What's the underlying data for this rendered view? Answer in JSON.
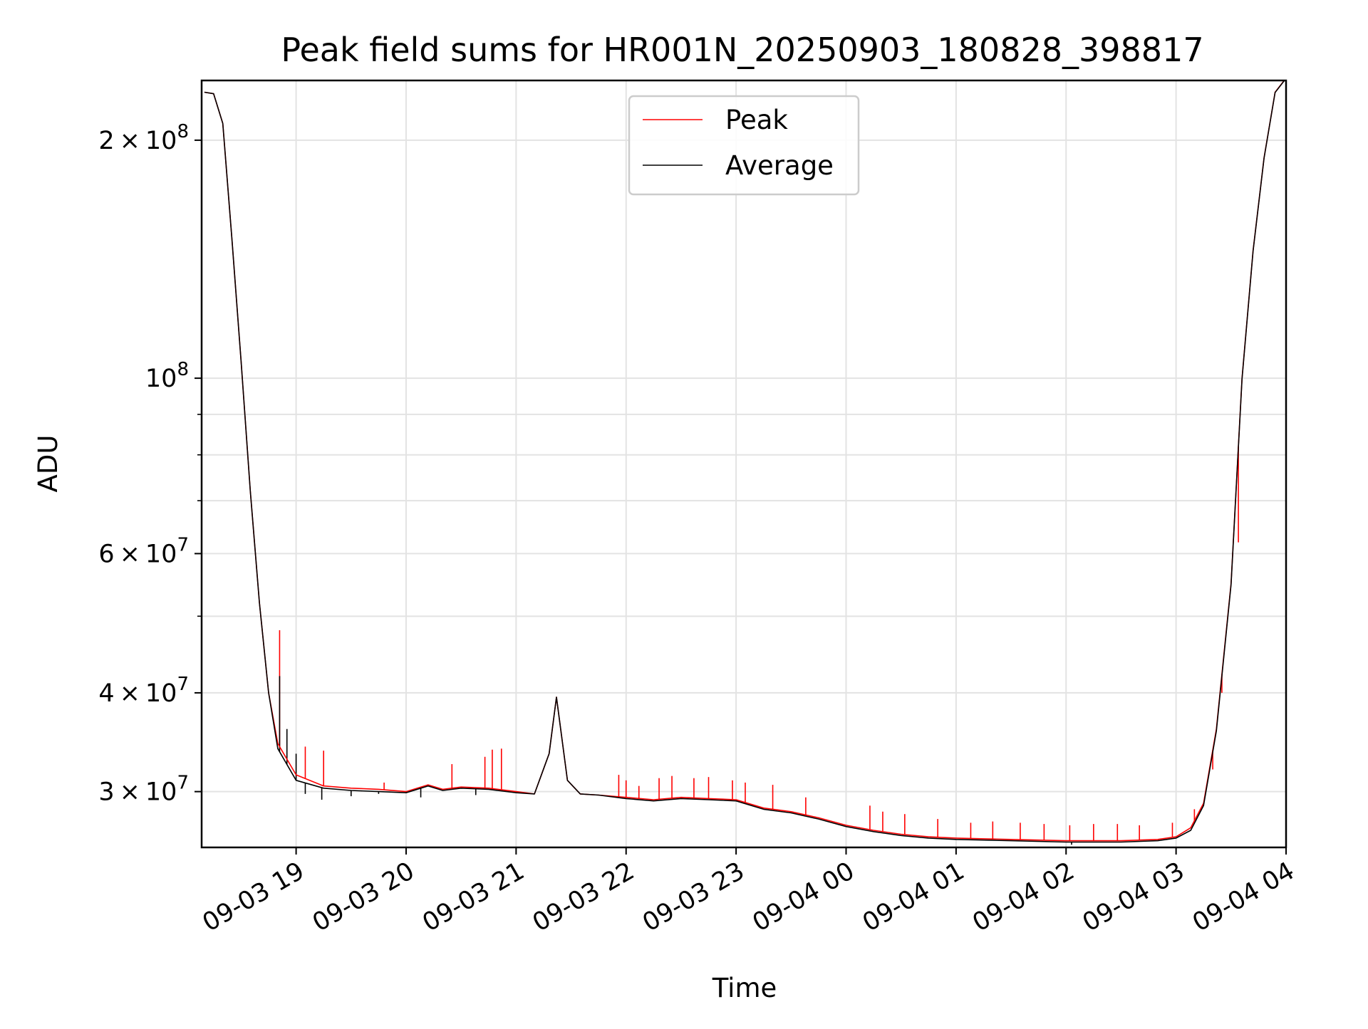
{
  "chart_data": {
    "type": "line",
    "title": "Peak field sums for HR001N_20250903_180828_398817",
    "xlabel": "Time",
    "ylabel": "ADU",
    "yscale": "log",
    "xlim": [
      "2025-09-03T18:08:28",
      "2025-09-04T04:00:00"
    ],
    "ylim": [
      25500000,
      238000000
    ],
    "grid": true,
    "legend": {
      "placement": "upper center",
      "entries": [
        "Peak",
        "Average"
      ]
    },
    "x_ticks": [
      "09-03 19",
      "09-03 20",
      "09-03 21",
      "09-03 22",
      "09-03 23",
      "09-04 00",
      "09-04 01",
      "09-04 02",
      "09-04 03",
      "09-04 04"
    ],
    "y_ticks": [
      {
        "value": 30000000,
        "mantissa": "3",
        "exponent": "7"
      },
      {
        "value": 40000000,
        "mantissa": "4",
        "exponent": "7"
      },
      {
        "value": 60000000,
        "mantissa": "6",
        "exponent": "7"
      },
      {
        "value": 100000000,
        "mantissa": "",
        "exponent": "8"
      },
      {
        "value": 200000000,
        "mantissa": "2",
        "exponent": "8"
      }
    ],
    "y_minor_ticks": [
      50000000,
      70000000,
      80000000,
      90000000
    ],
    "series": [
      {
        "name": "Peak",
        "color": "#ff0000",
        "x": [
          "2025-09-03T18:10:00",
          "2025-09-03T18:15:00",
          "2025-09-03T18:20:00",
          "2025-09-03T18:25:00",
          "2025-09-03T18:30:00",
          "2025-09-03T18:35:00",
          "2025-09-03T18:40:00",
          "2025-09-03T18:45:00",
          "2025-09-03T18:50:00",
          "2025-09-03T19:00:00",
          "2025-09-03T19:15:00",
          "2025-09-03T19:30:00",
          "2025-09-03T19:45:00",
          "2025-09-03T20:00:00",
          "2025-09-03T20:12:00",
          "2025-09-03T20:20:00",
          "2025-09-03T20:30:00",
          "2025-09-03T20:45:00",
          "2025-09-03T21:00:00",
          "2025-09-03T21:10:00",
          "2025-09-03T21:18:00",
          "2025-09-03T21:22:00",
          "2025-09-03T21:28:00",
          "2025-09-03T21:35:00",
          "2025-09-03T21:45:00",
          "2025-09-03T22:00:00",
          "2025-09-03T22:15:00",
          "2025-09-03T22:30:00",
          "2025-09-03T22:45:00",
          "2025-09-03T23:00:00",
          "2025-09-03T23:15:00",
          "2025-09-03T23:30:00",
          "2025-09-03T23:45:00",
          "2025-09-04T00:00:00",
          "2025-09-04T00:15:00",
          "2025-09-04T00:30:00",
          "2025-09-04T00:45:00",
          "2025-09-04T01:00:00",
          "2025-09-04T01:30:00",
          "2025-09-04T02:00:00",
          "2025-09-04T02:30:00",
          "2025-09-04T02:50:00",
          "2025-09-04T03:00:00",
          "2025-09-04T03:08:00",
          "2025-09-04T03:15:00",
          "2025-09-04T03:22:00",
          "2025-09-04T03:30:00",
          "2025-09-04T03:36:00",
          "2025-09-04T03:42:00",
          "2025-09-04T03:48:00",
          "2025-09-04T03:54:00",
          "2025-09-04T03:59:00"
        ],
        "y": [
          230000000,
          229000000,
          210000000,
          150000000,
          105000000,
          72000000,
          52000000,
          40000000,
          34500000,
          31500000,
          30500000,
          30300000,
          30200000,
          30000000,
          30600000,
          30200000,
          30400000,
          30300000,
          30000000,
          29800000,
          33500000,
          39500000,
          31000000,
          29800000,
          29700000,
          29500000,
          29300000,
          29500000,
          29400000,
          29300000,
          28600000,
          28300000,
          27800000,
          27200000,
          26800000,
          26500000,
          26300000,
          26200000,
          26100000,
          26000000,
          26000000,
          26100000,
          26300000,
          27000000,
          29000000,
          36000000,
          55000000,
          100000000,
          145000000,
          190000000,
          230000000,
          238000000
        ]
      },
      {
        "name": "Average",
        "color": "#000000",
        "x": [
          "2025-09-03T18:10:00",
          "2025-09-03T18:15:00",
          "2025-09-03T18:20:00",
          "2025-09-03T18:25:00",
          "2025-09-03T18:30:00",
          "2025-09-03T18:35:00",
          "2025-09-03T18:40:00",
          "2025-09-03T18:45:00",
          "2025-09-03T18:50:00",
          "2025-09-03T19:00:00",
          "2025-09-03T19:15:00",
          "2025-09-03T19:30:00",
          "2025-09-03T19:45:00",
          "2025-09-03T20:00:00",
          "2025-09-03T20:12:00",
          "2025-09-03T20:20:00",
          "2025-09-03T20:30:00",
          "2025-09-03T20:45:00",
          "2025-09-03T21:00:00",
          "2025-09-03T21:10:00",
          "2025-09-03T21:18:00",
          "2025-09-03T21:22:00",
          "2025-09-03T21:28:00",
          "2025-09-03T21:35:00",
          "2025-09-03T21:45:00",
          "2025-09-03T22:00:00",
          "2025-09-03T22:15:00",
          "2025-09-03T22:30:00",
          "2025-09-03T22:45:00",
          "2025-09-03T23:00:00",
          "2025-09-03T23:15:00",
          "2025-09-03T23:30:00",
          "2025-09-03T23:45:00",
          "2025-09-04T00:00:00",
          "2025-09-04T00:15:00",
          "2025-09-04T00:30:00",
          "2025-09-04T00:45:00",
          "2025-09-04T01:00:00",
          "2025-09-04T01:30:00",
          "2025-09-04T02:00:00",
          "2025-09-04T02:30:00",
          "2025-09-04T02:50:00",
          "2025-09-04T03:00:00",
          "2025-09-04T03:08:00",
          "2025-09-04T03:15:00",
          "2025-09-04T03:22:00",
          "2025-09-04T03:30:00",
          "2025-09-04T03:36:00",
          "2025-09-04T03:42:00",
          "2025-09-04T03:48:00",
          "2025-09-04T03:54:00",
          "2025-09-04T03:59:00"
        ],
        "y": [
          230000000,
          229000000,
          210000000,
          150000000,
          105000000,
          72000000,
          52000000,
          40000000,
          34000000,
          31000000,
          30300000,
          30100000,
          30000000,
          29900000,
          30500000,
          30100000,
          30300000,
          30200000,
          29900000,
          29800000,
          33500000,
          39500000,
          31000000,
          29800000,
          29700000,
          29400000,
          29200000,
          29400000,
          29300000,
          29200000,
          28500000,
          28200000,
          27700000,
          27100000,
          26700000,
          26400000,
          26200000,
          26100000,
          26000000,
          25900000,
          25900000,
          26000000,
          26200000,
          26800000,
          28800000,
          35800000,
          54800000,
          99800000,
          144800000,
          189800000,
          229800000,
          237800000
        ]
      }
    ],
    "spikes": {
      "Peak": [
        [
          "2025-09-03T18:51:00",
          48000000
        ],
        [
          "2025-09-03T19:05:00",
          34200000
        ],
        [
          "2025-09-03T19:15:00",
          33800000
        ],
        [
          "2025-09-03T19:48:00",
          30800000
        ],
        [
          "2025-09-03T20:25:00",
          32500000
        ],
        [
          "2025-09-03T20:43:00",
          33200000
        ],
        [
          "2025-09-03T20:47:00",
          33900000
        ],
        [
          "2025-09-03T20:52:00",
          34000000
        ],
        [
          "2025-09-03T21:56:00",
          31500000
        ],
        [
          "2025-09-03T22:00:00",
          31000000
        ],
        [
          "2025-09-03T22:07:00",
          30500000
        ],
        [
          "2025-09-03T22:18:00",
          31200000
        ],
        [
          "2025-09-03T22:25:00",
          31400000
        ],
        [
          "2025-09-03T22:37:00",
          31200000
        ],
        [
          "2025-09-03T22:45:00",
          31300000
        ],
        [
          "2025-09-03T22:58:00",
          31000000
        ],
        [
          "2025-09-03T23:05:00",
          30800000
        ],
        [
          "2025-09-03T23:20:00",
          30600000
        ],
        [
          "2025-09-03T23:38:00",
          29500000
        ],
        [
          "2025-09-04T00:13:00",
          28800000
        ],
        [
          "2025-09-04T00:20:00",
          28300000
        ],
        [
          "2025-09-04T00:32:00",
          28100000
        ],
        [
          "2025-09-04T00:50:00",
          27700000
        ],
        [
          "2025-09-04T01:08:00",
          27400000
        ],
        [
          "2025-09-04T01:20:00",
          27500000
        ],
        [
          "2025-09-04T01:35:00",
          27400000
        ],
        [
          "2025-09-04T01:48:00",
          27300000
        ],
        [
          "2025-09-04T02:02:00",
          27200000
        ],
        [
          "2025-09-04T02:15:00",
          27300000
        ],
        [
          "2025-09-04T02:28:00",
          27300000
        ],
        [
          "2025-09-04T02:40:00",
          27200000
        ],
        [
          "2025-09-04T02:58:00",
          27400000
        ],
        [
          "2025-09-04T03:10:00",
          28500000
        ],
        [
          "2025-09-04T03:20:00",
          32000000
        ],
        [
          "2025-09-04T03:25:00",
          40000000
        ],
        [
          "2025-09-04T03:34:00",
          62000000
        ]
      ],
      "Average": [
        [
          "2025-09-03T18:51:00",
          42000000
        ],
        [
          "2025-09-03T18:55:00",
          36000000
        ],
        [
          "2025-09-03T19:00:00",
          33500000
        ],
        [
          "2025-09-03T19:05:00",
          29800000
        ],
        [
          "2025-09-03T19:14:00",
          29300000
        ],
        [
          "2025-09-03T19:30:00",
          29600000
        ],
        [
          "2025-09-03T19:45:00",
          29800000
        ],
        [
          "2025-09-03T20:08:00",
          29500000
        ],
        [
          "2025-09-03T20:38:00",
          29700000
        ],
        [
          "2025-09-04T02:03:00",
          25700000
        ]
      ]
    }
  }
}
